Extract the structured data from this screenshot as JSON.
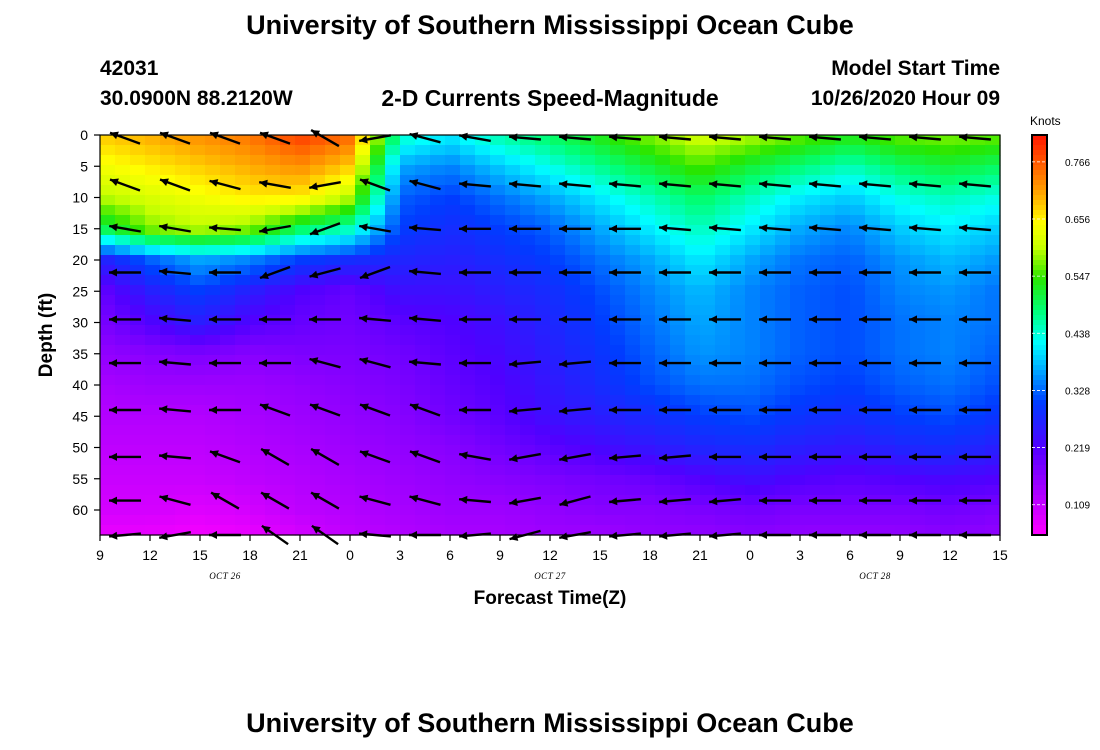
{
  "header": {
    "title": "University of Southern Mississippi Ocean Cube",
    "station_id": "42031",
    "location": "30.0900N 88.2120W",
    "chart_title": "2-D Currents Speed-Magnitude",
    "model_start_label": "Model Start Time",
    "model_start_value": "10/26/2020 Hour 09"
  },
  "footer": {
    "title": "University of Southern Mississippi Ocean Cube"
  },
  "chart_data": {
    "type": "heatmap",
    "title": "2-D Currents Speed-Magnitude",
    "xlabel": "Forecast Time(Z)",
    "ylabel": "Depth (ft)",
    "x_hours": [
      0,
      3,
      6,
      9,
      12,
      15,
      18,
      21,
      24,
      27,
      30,
      33,
      36,
      39,
      42,
      45,
      48,
      51,
      54
    ],
    "x_tick_labels": [
      "9",
      "12",
      "15",
      "18",
      "21",
      "0",
      "3",
      "6",
      "9",
      "12",
      "15",
      "18",
      "21",
      "0",
      "3",
      "6",
      "9",
      "12",
      "15"
    ],
    "date_labels": [
      {
        "label": "OCT 26",
        "hour": 7.5
      },
      {
        "label": "OCT 27",
        "hour": 27
      },
      {
        "label": "OCT 28",
        "hour": 46.5
      }
    ],
    "y_ticks": [
      0,
      5,
      10,
      15,
      20,
      25,
      30,
      35,
      40,
      45,
      50,
      55,
      60
    ],
    "ylim": [
      0,
      64
    ],
    "xlim": [
      0,
      54
    ],
    "colorbar": {
      "unit": "Knots",
      "ticks": [
        "0.766",
        "0.656",
        "0.547",
        "0.438",
        "0.328",
        "0.219",
        "0.109"
      ],
      "range": [
        0.06,
        0.79
      ]
    },
    "speed_grid_depths": [
      0,
      5,
      10,
      15,
      20,
      25,
      30,
      35,
      40,
      45,
      50,
      55,
      60,
      64
    ],
    "speed_grid_hours": [
      0,
      3,
      6,
      9,
      12,
      15,
      18,
      21,
      24,
      27,
      30,
      33,
      36,
      39,
      42,
      45,
      48,
      51,
      54
    ],
    "speed_grid": [
      [
        0.66,
        0.68,
        0.7,
        0.72,
        0.76,
        0.73,
        0.44,
        0.4,
        0.45,
        0.48,
        0.52,
        0.56,
        0.6,
        0.58,
        0.55,
        0.52,
        0.55,
        0.56,
        0.55
      ],
      [
        0.62,
        0.64,
        0.66,
        0.68,
        0.7,
        0.66,
        0.36,
        0.34,
        0.38,
        0.42,
        0.46,
        0.5,
        0.54,
        0.5,
        0.47,
        0.44,
        0.48,
        0.5,
        0.48
      ],
      [
        0.58,
        0.6,
        0.62,
        0.64,
        0.64,
        0.58,
        0.32,
        0.3,
        0.33,
        0.36,
        0.4,
        0.44,
        0.48,
        0.44,
        0.4,
        0.38,
        0.42,
        0.44,
        0.42
      ],
      [
        0.48,
        0.56,
        0.58,
        0.56,
        0.48,
        0.44,
        0.3,
        0.28,
        0.3,
        0.32,
        0.36,
        0.4,
        0.44,
        0.4,
        0.36,
        0.34,
        0.38,
        0.4,
        0.38
      ],
      [
        0.26,
        0.32,
        0.36,
        0.34,
        0.3,
        0.28,
        0.27,
        0.26,
        0.28,
        0.3,
        0.33,
        0.36,
        0.4,
        0.36,
        0.33,
        0.32,
        0.35,
        0.37,
        0.35
      ],
      [
        0.2,
        0.26,
        0.3,
        0.26,
        0.22,
        0.2,
        0.24,
        0.24,
        0.26,
        0.28,
        0.31,
        0.34,
        0.37,
        0.34,
        0.32,
        0.31,
        0.34,
        0.35,
        0.33
      ],
      [
        0.18,
        0.22,
        0.26,
        0.22,
        0.2,
        0.19,
        0.21,
        0.22,
        0.24,
        0.27,
        0.3,
        0.33,
        0.36,
        0.34,
        0.32,
        0.31,
        0.33,
        0.34,
        0.33
      ],
      [
        0.16,
        0.17,
        0.18,
        0.17,
        0.18,
        0.18,
        0.19,
        0.21,
        0.23,
        0.26,
        0.29,
        0.32,
        0.35,
        0.34,
        0.32,
        0.31,
        0.33,
        0.34,
        0.32
      ],
      [
        0.14,
        0.15,
        0.15,
        0.15,
        0.16,
        0.17,
        0.18,
        0.2,
        0.22,
        0.25,
        0.28,
        0.31,
        0.33,
        0.33,
        0.31,
        0.3,
        0.32,
        0.33,
        0.31
      ],
      [
        0.13,
        0.13,
        0.13,
        0.14,
        0.15,
        0.16,
        0.17,
        0.19,
        0.21,
        0.24,
        0.26,
        0.28,
        0.3,
        0.31,
        0.29,
        0.28,
        0.3,
        0.31,
        0.29
      ],
      [
        0.12,
        0.12,
        0.12,
        0.13,
        0.14,
        0.15,
        0.16,
        0.17,
        0.19,
        0.21,
        0.23,
        0.25,
        0.27,
        0.28,
        0.26,
        0.25,
        0.27,
        0.28,
        0.26
      ],
      [
        0.11,
        0.11,
        0.11,
        0.12,
        0.13,
        0.14,
        0.15,
        0.16,
        0.17,
        0.18,
        0.19,
        0.2,
        0.22,
        0.24,
        0.22,
        0.21,
        0.22,
        0.23,
        0.22
      ],
      [
        0.1,
        0.1,
        0.09,
        0.1,
        0.12,
        0.13,
        0.14,
        0.15,
        0.15,
        0.16,
        0.17,
        0.17,
        0.18,
        0.19,
        0.18,
        0.18,
        0.18,
        0.19,
        0.18
      ],
      [
        0.08,
        0.08,
        0.07,
        0.08,
        0.1,
        0.12,
        0.13,
        0.14,
        0.14,
        0.15,
        0.15,
        0.16,
        0.16,
        0.17,
        0.16,
        0.16,
        0.16,
        0.17,
        0.16
      ]
    ],
    "vector_hours": [
      1.5,
      4.5,
      7.5,
      10.5,
      13.5,
      16.5,
      19.5,
      22.5,
      25.5,
      28.5,
      31.5,
      34.5,
      37.5,
      40.5,
      43.5,
      46.5,
      49.5,
      52.5
    ],
    "vector_depths": [
      0.5,
      8,
      15,
      22,
      29.5,
      36.5,
      44,
      51.5,
      58.5,
      64
    ],
    "vector_angles_deg": [
      [
        200,
        200,
        200,
        200,
        210,
        170,
        195,
        190,
        185,
        185,
        185,
        185,
        185,
        185,
        185,
        185,
        185,
        185
      ],
      [
        200,
        200,
        195,
        190,
        170,
        200,
        195,
        185,
        185,
        185,
        185,
        185,
        185,
        185,
        185,
        185,
        185,
        185
      ],
      [
        190,
        190,
        185,
        170,
        160,
        190,
        185,
        180,
        180,
        180,
        180,
        185,
        185,
        185,
        185,
        185,
        185,
        185
      ],
      [
        180,
        185,
        180,
        160,
        165,
        160,
        185,
        180,
        180,
        180,
        180,
        180,
        180,
        180,
        180,
        180,
        180,
        180
      ],
      [
        180,
        185,
        180,
        180,
        180,
        185,
        185,
        180,
        180,
        180,
        180,
        180,
        180,
        180,
        180,
        180,
        180,
        180
      ],
      [
        180,
        185,
        180,
        180,
        195,
        195,
        185,
        180,
        175,
        175,
        180,
        180,
        180,
        180,
        180,
        180,
        180,
        180
      ],
      [
        180,
        185,
        180,
        200,
        200,
        200,
        200,
        180,
        175,
        175,
        180,
        180,
        180,
        180,
        180,
        180,
        180,
        180
      ],
      [
        180,
        185,
        200,
        210,
        210,
        200,
        200,
        190,
        170,
        170,
        175,
        175,
        180,
        180,
        180,
        180,
        180,
        180
      ],
      [
        180,
        195,
        210,
        210,
        210,
        195,
        195,
        185,
        170,
        165,
        175,
        175,
        175,
        180,
        180,
        180,
        180,
        180
      ],
      [
        175,
        170,
        180,
        215,
        215,
        185,
        180,
        175,
        165,
        170,
        175,
        175,
        175,
        180,
        180,
        180,
        180,
        180
      ]
    ]
  }
}
